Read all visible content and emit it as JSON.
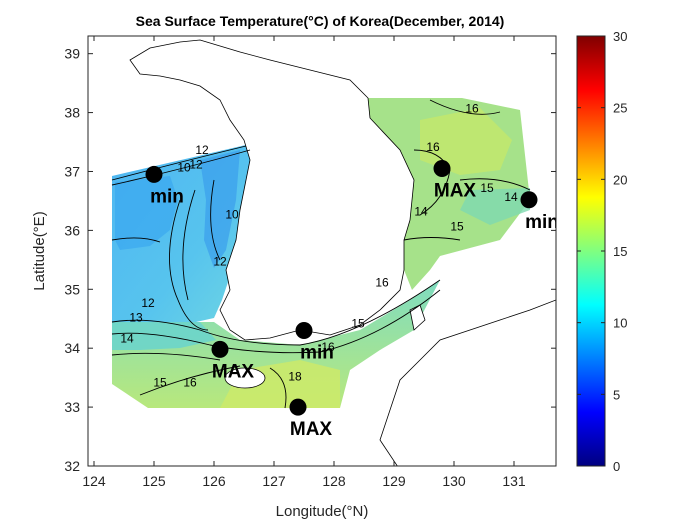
{
  "title": "Sea Surface Temperature(°C) of Korea(December, 2014)",
  "xlabel": "Longitude(°N)",
  "ylabel": "Latitude(°E)",
  "xticks": [
    124,
    125,
    126,
    127,
    128,
    129,
    130,
    131
  ],
  "yticks": [
    32,
    33,
    34,
    35,
    36,
    37,
    38,
    39
  ],
  "colorbar": {
    "min": 0,
    "max": 30,
    "ticks": [
      0,
      5,
      10,
      15,
      20,
      25,
      30
    ],
    "colormap": "jet"
  },
  "markers": [
    {
      "label": "min",
      "lon": 125.0,
      "lat": 36.95
    },
    {
      "label": "MAX",
      "lon": 129.8,
      "lat": 37.05
    },
    {
      "label": "min",
      "lon": 131.25,
      "lat": 36.52
    },
    {
      "label": "MAX",
      "lon": 126.1,
      "lat": 33.98
    },
    {
      "label": "min",
      "lon": 127.5,
      "lat": 34.3
    },
    {
      "label": "MAX",
      "lon": 127.4,
      "lat": 33.0
    }
  ],
  "contour_labels": [
    {
      "text": "10",
      "lon": 125.5,
      "lat": 37.0
    },
    {
      "text": "12",
      "lon": 125.8,
      "lat": 37.3
    },
    {
      "text": "12",
      "lon": 125.7,
      "lat": 37.05
    },
    {
      "text": "10",
      "lon": 126.3,
      "lat": 36.2
    },
    {
      "text": "12",
      "lon": 126.1,
      "lat": 35.4
    },
    {
      "text": "12",
      "lon": 124.9,
      "lat": 34.7
    },
    {
      "text": "13",
      "lon": 124.7,
      "lat": 34.45
    },
    {
      "text": "14",
      "lon": 124.55,
      "lat": 34.1
    },
    {
      "text": "15",
      "lon": 125.1,
      "lat": 33.35
    },
    {
      "text": "16",
      "lon": 125.6,
      "lat": 33.35
    },
    {
      "text": "16",
      "lon": 127.9,
      "lat": 33.95
    },
    {
      "text": "18",
      "lon": 127.35,
      "lat": 33.45
    },
    {
      "text": "15",
      "lon": 128.4,
      "lat": 34.35
    },
    {
      "text": "16",
      "lon": 128.8,
      "lat": 35.05
    },
    {
      "text": "16",
      "lon": 130.3,
      "lat": 38.0
    },
    {
      "text": "16",
      "lon": 129.65,
      "lat": 37.35
    },
    {
      "text": "15",
      "lon": 130.55,
      "lat": 36.65
    },
    {
      "text": "14",
      "lon": 130.95,
      "lat": 36.5
    },
    {
      "text": "15",
      "lon": 130.05,
      "lat": 36.0
    },
    {
      "text": "14",
      "lon": 129.45,
      "lat": 36.25
    }
  ]
}
